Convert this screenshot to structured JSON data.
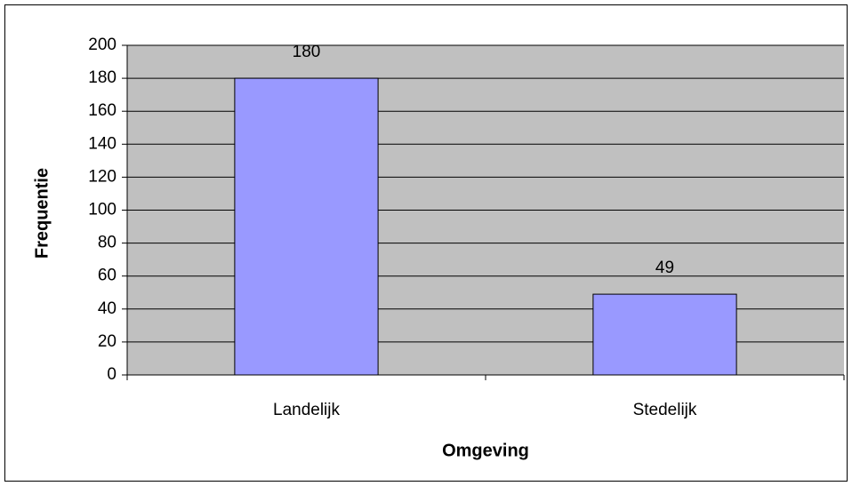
{
  "chart_data": {
    "type": "bar",
    "categories": [
      "Landelijk",
      "Stedelijk"
    ],
    "values": [
      180,
      49
    ],
    "color": "#9999ff",
    "plot_background": "#c0c0c0",
    "xlabel": "Omgeving",
    "ylabel": "Frequentie",
    "ylim": [
      0,
      200
    ],
    "yticks": [
      0,
      20,
      40,
      60,
      80,
      100,
      120,
      140,
      160,
      180,
      200
    ],
    "grid": true,
    "data_labels": true
  }
}
